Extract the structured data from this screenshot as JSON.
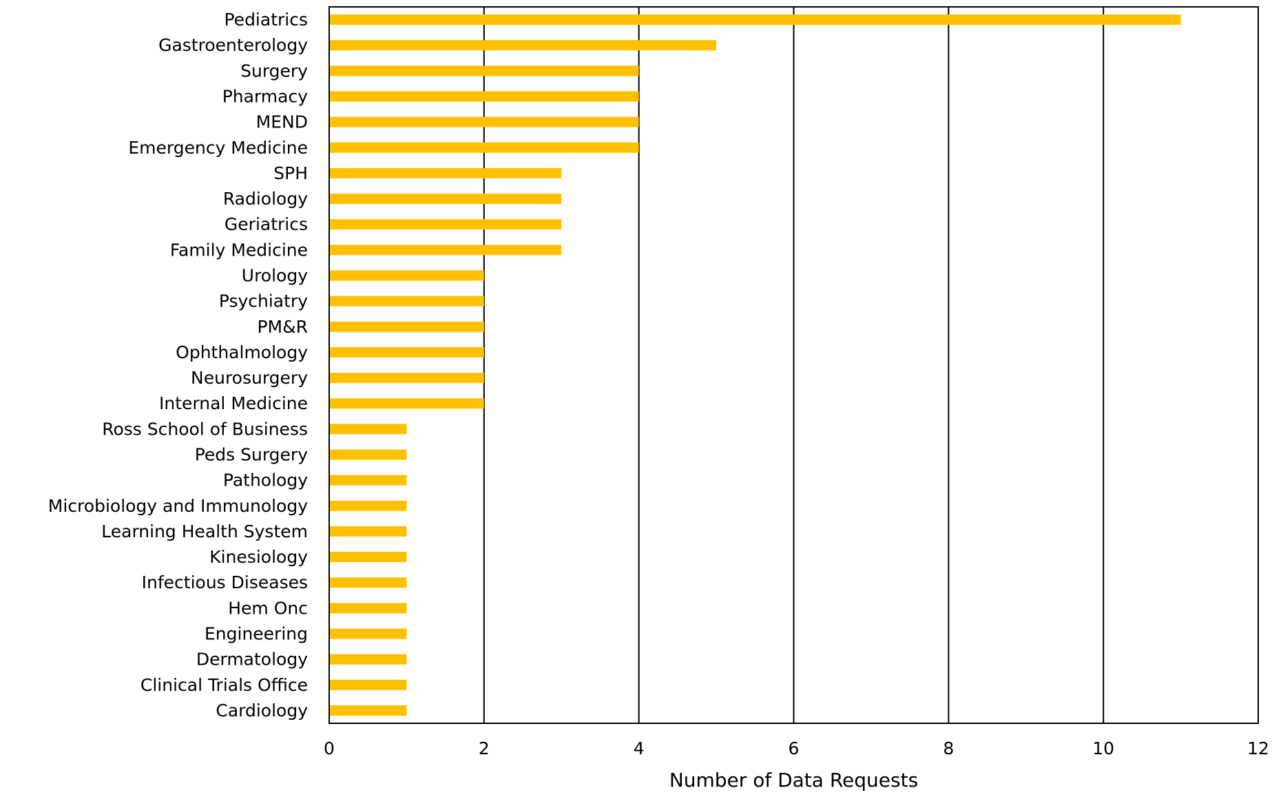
{
  "chart_data": {
    "type": "bar",
    "orientation": "horizontal",
    "categories": [
      "Pediatrics",
      "Gastroenterology",
      "Surgery",
      "Pharmacy",
      "MEND",
      "Emergency Medicine",
      "SPH",
      "Radiology",
      "Geriatrics",
      "Family Medicine",
      "Urology",
      "Psychiatry",
      "PM&R",
      "Ophthalmology",
      "Neurosurgery",
      "Internal Medicine",
      "Ross School of Business",
      "Peds Surgery",
      "Pathology",
      "Microbiology and Immunology",
      "Learning Health System",
      "Kinesiology",
      "Infectious Diseases",
      "Hem Onc",
      "Engineering",
      "Dermatology",
      "Clinical Trials Office",
      "Cardiology"
    ],
    "values": [
      11,
      5,
      4,
      4,
      4,
      4,
      3,
      3,
      3,
      3,
      2,
      2,
      2,
      2,
      2,
      2,
      1,
      1,
      1,
      1,
      1,
      1,
      1,
      1,
      1,
      1,
      1,
      1
    ],
    "title": "",
    "xlabel": "Number of Data Requests",
    "ylabel": "",
    "xlim": [
      0,
      12
    ],
    "xticks": [
      0,
      2,
      4,
      6,
      8,
      10,
      12
    ],
    "grid": "vertical",
    "legend": "none",
    "bar_color": "#FFC000"
  }
}
